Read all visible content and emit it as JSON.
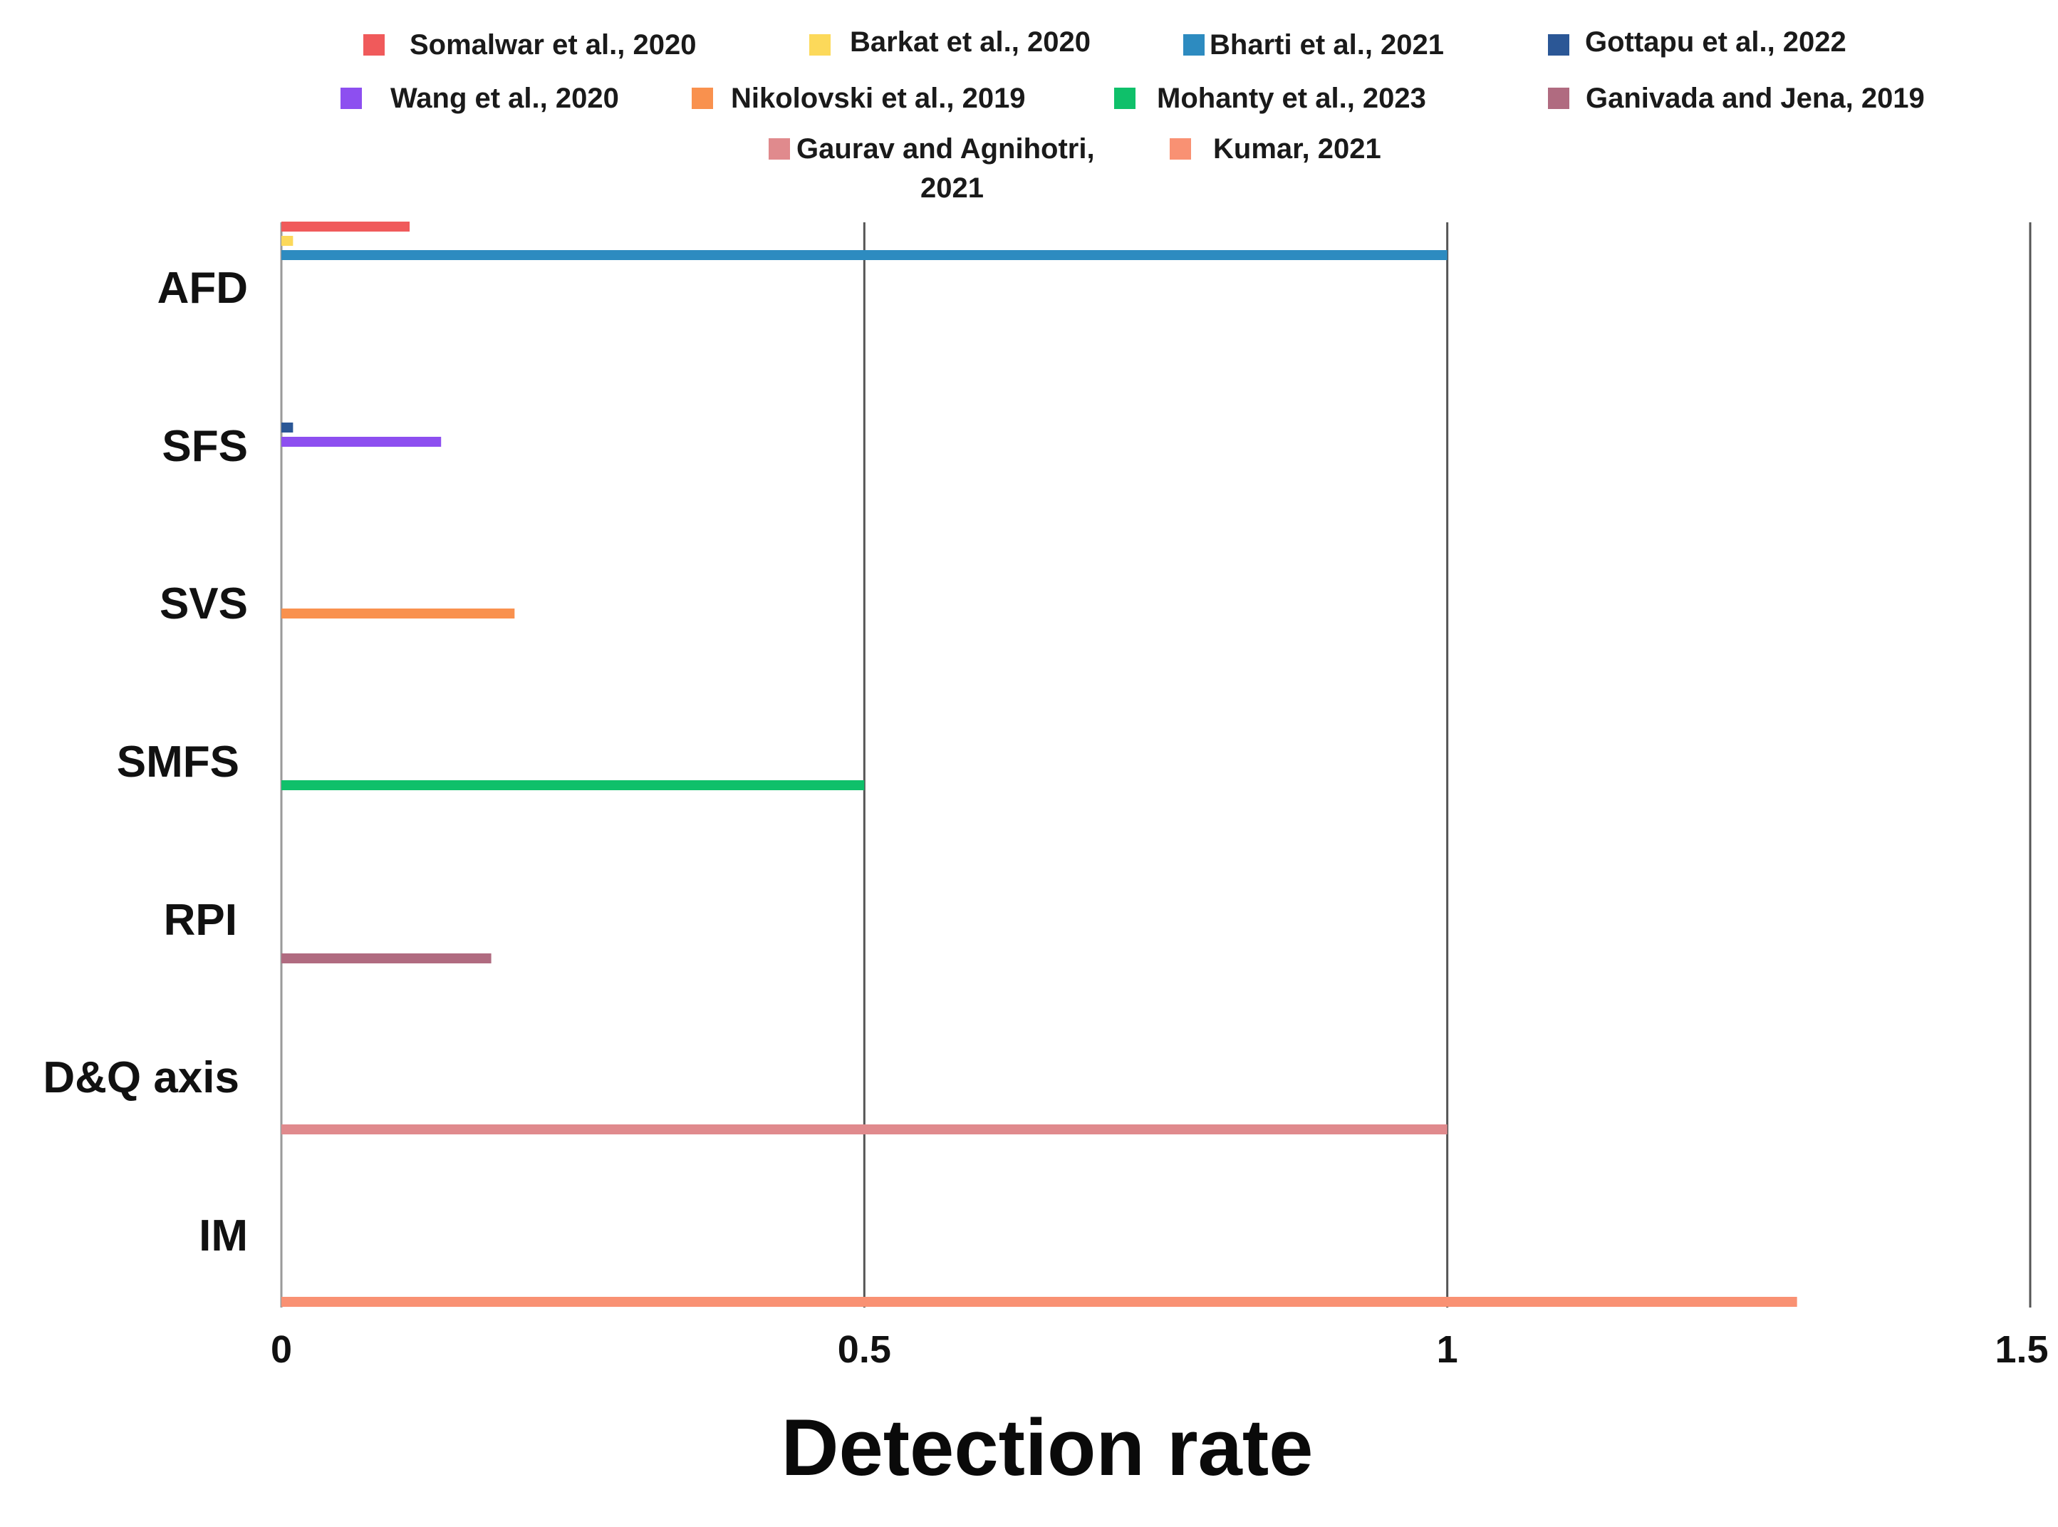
{
  "chart_data": {
    "type": "bar",
    "orientation": "horizontal",
    "title": "",
    "xlabel": "Detection rate",
    "ylabel": "",
    "xlim": [
      0,
      1.5
    ],
    "xticks": [
      {
        "value": 0,
        "label": "0"
      },
      {
        "value": 0.5,
        "label": "0.5"
      },
      {
        "value": 1,
        "label": "1"
      },
      {
        "value": 1.5,
        "label": "1.5"
      }
    ],
    "grid": "vertical",
    "legend_position": "top",
    "categories": [
      "AFD",
      "SFS",
      "SVS",
      "SMFS",
      "RPI",
      "D&Q axis",
      "IM"
    ],
    "series": [
      {
        "name": "Somalwar et al., 2020",
        "color": "#f05a5b",
        "category": "AFD",
        "value": 0.11
      },
      {
        "name": "Barkat et al., 2020",
        "color": "#fcd95a",
        "category": "AFD",
        "value": 0.01
      },
      {
        "name": "Bharti et al., 2021",
        "color": "#2d8bc0",
        "category": "AFD",
        "value": 1.0
      },
      {
        "name": "Gottapu et al., 2022",
        "color": "#2b5796",
        "category": "SFS",
        "value": 0.01
      },
      {
        "name": "Wang et al., 2020",
        "color": "#8d4ff0",
        "category": "SFS",
        "value": 0.137
      },
      {
        "name": "Nikolovski et al., 2019",
        "color": "#f9914e",
        "category": "SVS",
        "value": 0.2
      },
      {
        "name": "Mohanty et al., 2023",
        "color": "#0fc06a",
        "category": "SMFS",
        "value": 0.5
      },
      {
        "name": "Ganivada and Jena, 2019",
        "color": "#b06b80",
        "category": "RPI",
        "value": 0.18
      },
      {
        "name": "Gaurav and Agnihotri, 2021",
        "color": "#e08a8d",
        "category": "D&Q axis",
        "value": 1.0
      },
      {
        "name": "Kumar, 2021",
        "color": "#f99173",
        "category": "IM",
        "value": 1.3
      }
    ]
  }
}
